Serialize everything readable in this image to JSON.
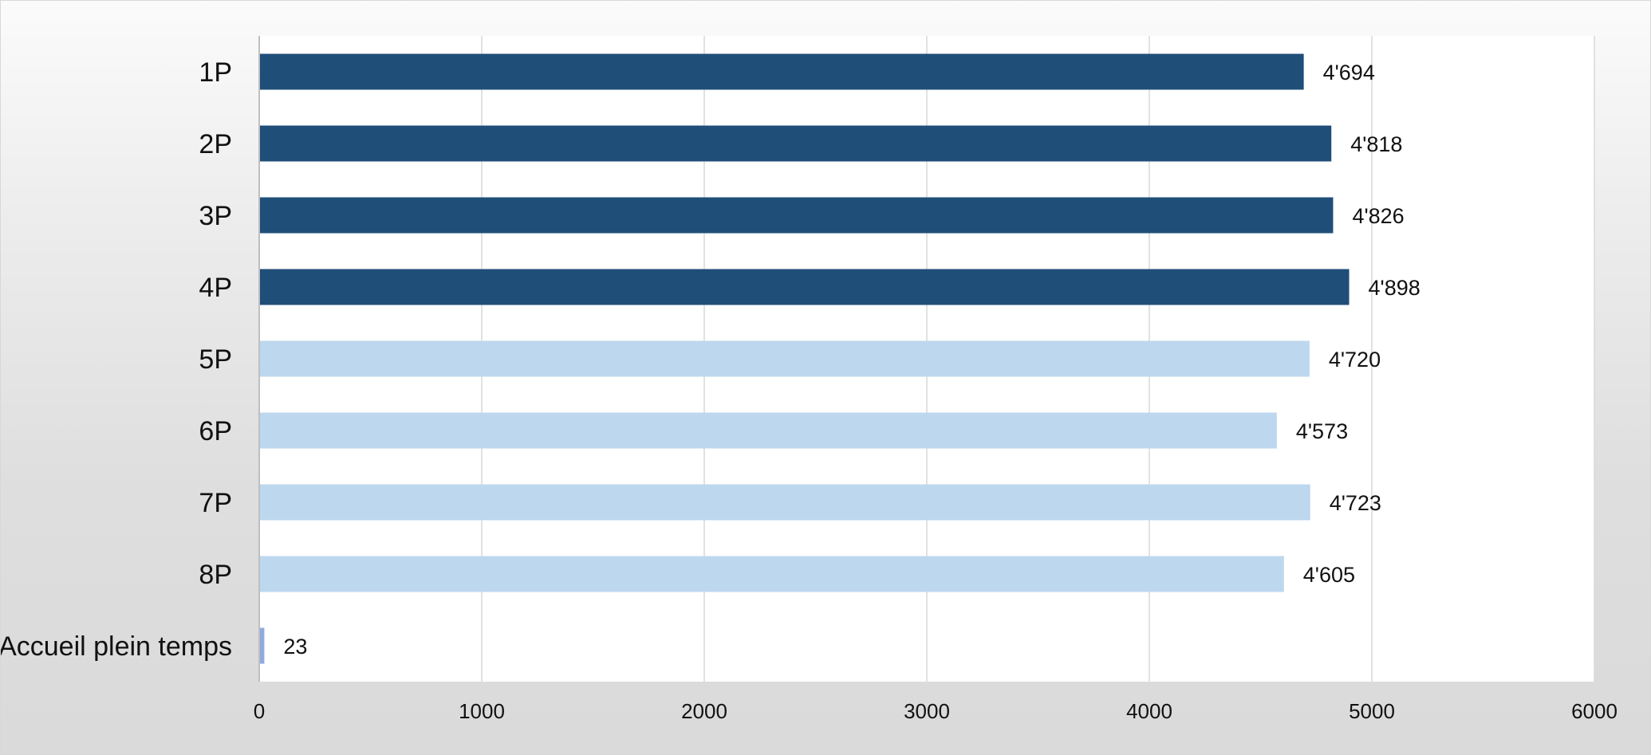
{
  "chart_data": {
    "type": "bar",
    "orientation": "horizontal",
    "categories": [
      "1P",
      "2P",
      "3P",
      "4P",
      "5P",
      "6P",
      "7P",
      "8P",
      "Accueil plein temps"
    ],
    "values": [
      4694,
      4818,
      4826,
      4898,
      4720,
      4573,
      4723,
      4605,
      23
    ],
    "data_labels": [
      "4'694",
      "4'818",
      "4'826",
      "4'898",
      "4'720",
      "4'573",
      "4'723",
      "4'605",
      "23"
    ],
    "colors": [
      "#1f4e79",
      "#1f4e79",
      "#1f4e79",
      "#1f4e79",
      "#bdd7ee",
      "#bdd7ee",
      "#bdd7ee",
      "#bdd7ee",
      "#8faadc"
    ],
    "xlim": [
      0,
      6000
    ],
    "xticks": [
      0,
      1000,
      2000,
      3000,
      4000,
      5000,
      6000
    ],
    "xtick_labels": [
      "0",
      "1000",
      "2000",
      "3000",
      "4000",
      "5000",
      "6000"
    ],
    "grid": "vertical",
    "legend": "none"
  }
}
